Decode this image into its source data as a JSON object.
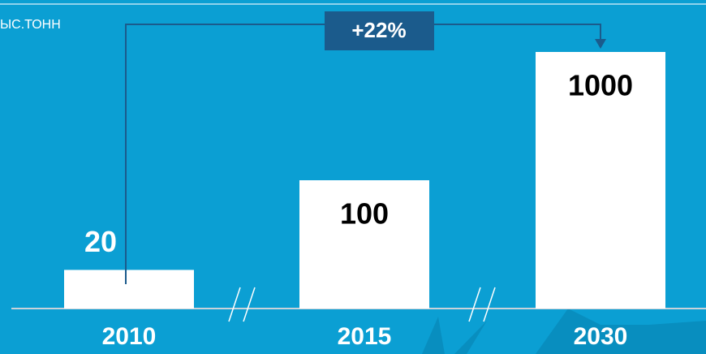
{
  "chart_data": {
    "type": "bar",
    "title": "ЫС.ТОНН",
    "annotation": "+22%",
    "categories": [
      "2010",
      "2015",
      "2030"
    ],
    "values": [
      20,
      100,
      1000
    ],
    "color": "#ffffff",
    "log_scale": true,
    "ylim": [
      10,
      1000
    ]
  }
}
